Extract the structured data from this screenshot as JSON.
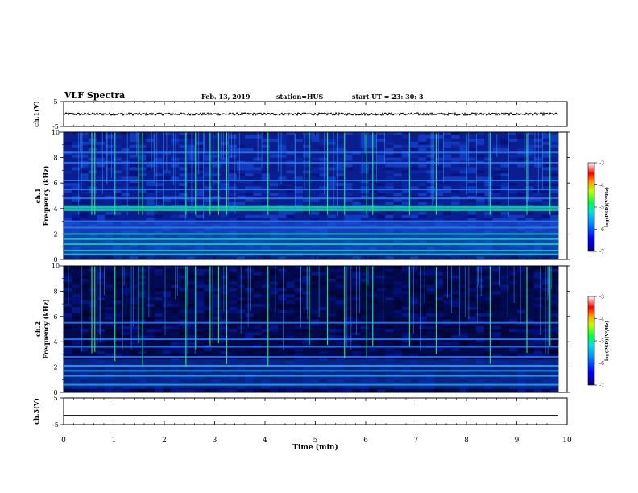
{
  "header": {
    "title": "VLF Spectra",
    "date": "Feb. 13, 2019",
    "station": "station=HUS",
    "start": "start  UT =   23: 30: 3"
  },
  "chart_data": [
    {
      "type": "line",
      "panel": "ch1-waveform",
      "ylabel": "ch.1(V)",
      "yticks": [
        "5",
        "-5"
      ],
      "ylim": [
        -5,
        5
      ],
      "xlim": [
        0,
        9.83
      ],
      "description_values": {
        "mean": 0.0,
        "amplitude": 0.5
      }
    },
    {
      "type": "heatmap",
      "panel": "ch1-spectrogram",
      "ylabel": "ch.1\nFrequency (kHz)",
      "ylabel_lines": [
        "ch.1",
        "Frequency (kHz)"
      ],
      "yticks": [
        "0",
        "2",
        "4",
        "6",
        "8",
        "10"
      ],
      "ylim": [
        0,
        10
      ],
      "xlim": [
        0,
        9.83
      ],
      "colorbar": {
        "label": "log(PSD)(V²/Hz)",
        "ticks": [
          "-3",
          "-4",
          "-5",
          "-6",
          "-7"
        ],
        "range": [
          -7,
          -3
        ]
      },
      "bands_khz": [
        0.4,
        0.7,
        1.2,
        1.6,
        2.0,
        2.5,
        3.0,
        3.9,
        4.1,
        4.8,
        5.5,
        6.2,
        7.6,
        8.4
      ],
      "spikes_min": [
        0.56,
        0.62,
        1.02,
        1.49,
        1.57,
        2.43,
        2.62,
        2.91,
        3.08,
        3.24,
        4.06,
        4.88,
        5.24,
        5.58,
        6.02,
        6.14,
        6.87,
        7.4,
        8.47,
        9.2,
        9.66
      ]
    },
    {
      "type": "heatmap",
      "panel": "ch2-spectrogram",
      "ylabel": "ch.2\nFrequency (kHz)",
      "ylabel_lines": [
        "ch.2",
        "Frequency (kHz)"
      ],
      "yticks": [
        "0",
        "2",
        "4",
        "6",
        "8",
        "10"
      ],
      "ylim": [
        0,
        10
      ],
      "xlim": [
        0,
        9.83
      ],
      "colorbar": {
        "label": "log(PSD)(V²/Hz)",
        "ticks": [
          "-3",
          "-4",
          "-5",
          "-6",
          "-7"
        ],
        "range": [
          -7,
          -3
        ]
      },
      "bands_khz": [
        0.6,
        1.3,
        1.7,
        2.1,
        2.8,
        3.6,
        4.2,
        5.5
      ],
      "spikes_min": [
        0.56,
        0.62,
        1.02,
        1.49,
        1.57,
        2.43,
        2.62,
        2.91,
        3.08,
        3.24,
        4.06,
        4.88,
        5.24,
        5.58,
        6.02,
        6.14,
        6.87,
        7.4,
        8.47,
        9.2,
        9.66
      ]
    },
    {
      "type": "line",
      "panel": "ch3-waveform",
      "ylabel": "ch.3(V)",
      "yticks": [
        "5",
        "-5"
      ],
      "ylim": [
        -5,
        5
      ],
      "xlim": [
        0,
        9.83
      ],
      "description_values": {
        "mean": -1.5,
        "amplitude": 0.0
      }
    }
  ],
  "xaxis": {
    "label": "Time  (min)",
    "ticks": [
      "0",
      "1",
      "2",
      "3",
      "4",
      "5",
      "6",
      "7",
      "8",
      "9",
      "10"
    ],
    "xlim": [
      0,
      10
    ]
  }
}
